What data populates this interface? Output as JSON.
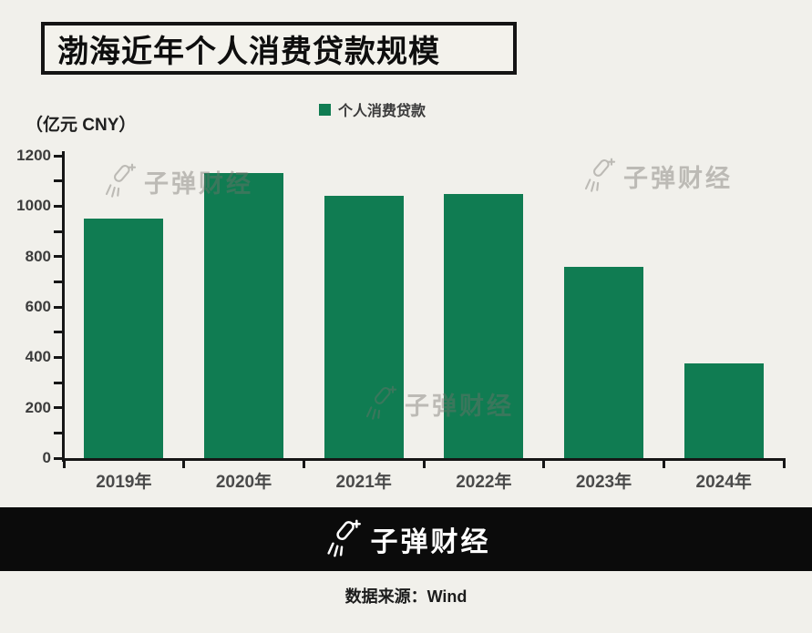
{
  "page": {
    "background": "#f1f0eb"
  },
  "title": {
    "text": "渤海近年个人消费贷款规模"
  },
  "unit_label": "（亿元 CNY）",
  "legend": {
    "label": "个人消费贷款",
    "color": "#107c52"
  },
  "watermark": {
    "text": "子弹财经",
    "icon": "bullet-rocket-icon"
  },
  "footer": {
    "brand": "子弹财经",
    "background": "#0b0b0b"
  },
  "source_line": "数据来源：Wind",
  "colors": {
    "bar": "#107c52",
    "background": "#f1f0eb",
    "axis": "#161616",
    "footer_background": "#0b0b0b",
    "watermark": "#75726b"
  },
  "chart_data": {
    "type": "bar",
    "title": "渤海近年个人消费贷款规模",
    "unit": "亿元 CNY",
    "categories": [
      "2019年",
      "2020年",
      "2021年",
      "2022年",
      "2023年",
      "2024年"
    ],
    "series": [
      {
        "name": "个人消费贷款",
        "values": [
          950,
          1130,
          1040,
          1050,
          760,
          375
        ]
      }
    ],
    "ylim": [
      0,
      1200
    ],
    "ytick_step": 200,
    "minor_tick_step": 100,
    "grid": false,
    "legend_position": "top",
    "bar_color": "#107c52"
  }
}
